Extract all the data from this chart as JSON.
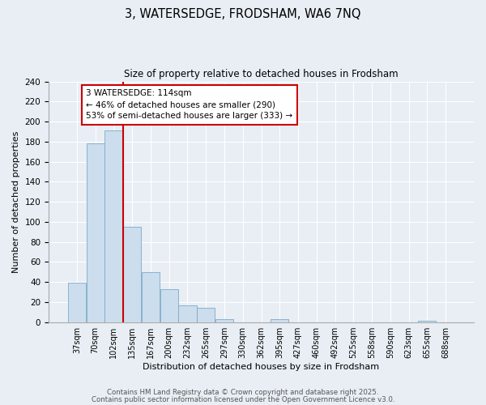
{
  "title_line1": "3, WATERSEDGE, FRODSHAM, WA6 7NQ",
  "title_line2": "Size of property relative to detached houses in Frodsham",
  "bar_labels": [
    "37sqm",
    "70sqm",
    "102sqm",
    "135sqm",
    "167sqm",
    "200sqm",
    "232sqm",
    "265sqm",
    "297sqm",
    "330sqm",
    "362sqm",
    "395sqm",
    "427sqm",
    "460sqm",
    "492sqm",
    "525sqm",
    "558sqm",
    "590sqm",
    "623sqm",
    "655sqm",
    "688sqm"
  ],
  "bar_values": [
    39,
    178,
    191,
    95,
    50,
    33,
    17,
    14,
    3,
    0,
    0,
    3,
    0,
    0,
    0,
    0,
    0,
    0,
    0,
    1,
    0
  ],
  "bar_color": "#ccdded",
  "bar_edge_color": "#7aabcc",
  "vline_color": "#cc0000",
  "annotation_title": "3 WATERSEDGE: 114sqm",
  "annotation_line2": "← 46% of detached houses are smaller (290)",
  "annotation_line3": "53% of semi-detached houses are larger (333) →",
  "annotation_box_facecolor": "#ffffff",
  "annotation_box_edgecolor": "#cc0000",
  "xlabel": "Distribution of detached houses by size in Frodsham",
  "ylabel": "Number of detached properties",
  "ylim": [
    0,
    240
  ],
  "yticks": [
    0,
    20,
    40,
    60,
    80,
    100,
    120,
    140,
    160,
    180,
    200,
    220,
    240
  ],
  "footer_line1": "Contains HM Land Registry data © Crown copyright and database right 2025.",
  "footer_line2": "Contains public sector information licensed under the Open Government Licence v3.0.",
  "bg_color": "#e8eef4",
  "plot_bg_color": "#e8eef4",
  "grid_color": "#ffffff"
}
